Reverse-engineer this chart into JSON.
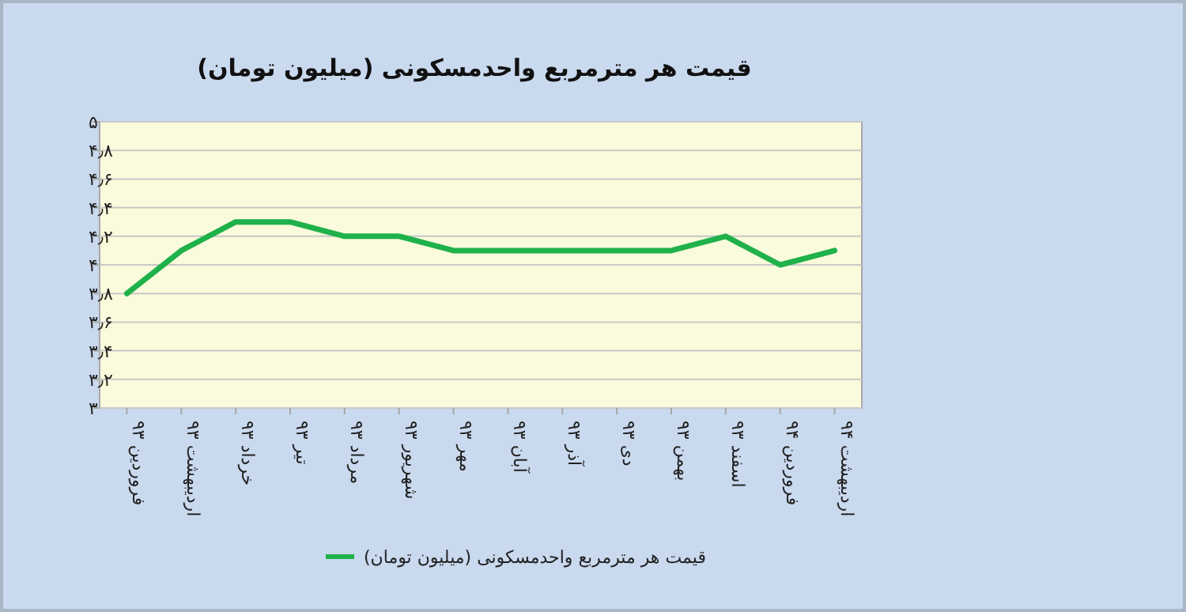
{
  "chart_data": {
    "type": "line",
    "title": "قیمت هر مترمربع واحدمسکونی (میلیون تومان)",
    "categories": [
      "فروردین ۹۳",
      "اردیبهشت ۹۳",
      "خرداد ۹۳",
      "تیر ۹۳",
      "مرداد ۹۳",
      "شهریور ۹۳",
      "مهر ۹۳",
      "آبان ۹۳",
      "آذر ۹۳",
      "دی ۹۳",
      "بهمن ۹۳",
      "اسفند ۹۳",
      "فروردین ۹۴",
      "اردیبهشت ۹۴"
    ],
    "series": [
      {
        "name": "قیمت هر مترمربع واحدمسکونی (میلیون تومان)",
        "color": "#1fb14a",
        "values": [
          3.8,
          4.1,
          4.3,
          4.3,
          4.2,
          4.2,
          4.1,
          4.1,
          4.1,
          4.1,
          4.1,
          4.2,
          4.0,
          4.1
        ]
      }
    ],
    "ylim": [
      3,
      5
    ],
    "yticks": [
      {
        "value": 3,
        "label": "۳"
      },
      {
        "value": 3.2,
        "label": "۳٫۲"
      },
      {
        "value": 3.4,
        "label": "۳٫۴"
      },
      {
        "value": 3.6,
        "label": "۳٫۶"
      },
      {
        "value": 3.8,
        "label": "۳٫۸"
      },
      {
        "value": 4,
        "label": "۴"
      },
      {
        "value": 4.2,
        "label": "۴٫۲"
      },
      {
        "value": 4.4,
        "label": "۴٫۴"
      },
      {
        "value": 4.6,
        "label": "۴٫۶"
      },
      {
        "value": 4.8,
        "label": "۴٫۸"
      },
      {
        "value": 5,
        "label": "۵"
      }
    ],
    "grid": "y",
    "legend": "bottom",
    "marker": "none",
    "line_style": "solid"
  }
}
